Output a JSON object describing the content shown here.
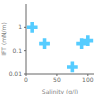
{
  "chart_data": {
    "type": "scatter",
    "x": [
      10,
      30,
      75,
      90,
      100
    ],
    "values": [
      1.0,
      0.2,
      0.02,
      0.2,
      0.27
    ],
    "xlabel": "Salinity (g/l)",
    "ylabel": "IFT (mN/m)",
    "xlim": [
      0,
      110
    ],
    "ylim": [
      0.01,
      10
    ],
    "xticks": [
      0,
      50,
      100
    ],
    "yticks": [
      0.01,
      0.1,
      1
    ],
    "log": "y",
    "color": "#55ccff",
    "marker": "cross",
    "grid": false
  }
}
